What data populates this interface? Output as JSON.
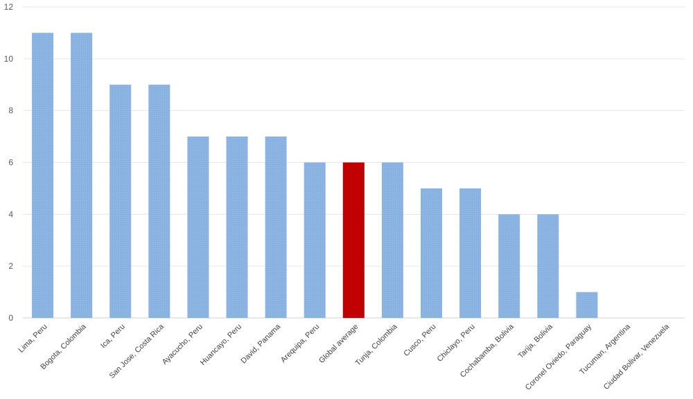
{
  "chart_data": {
    "type": "bar",
    "title": "",
    "xlabel": "",
    "ylabel": "",
    "ylim": [
      0,
      12
    ],
    "yticks": [
      0,
      2,
      4,
      6,
      8,
      10,
      12
    ],
    "grid": true,
    "legend": "none",
    "colors": {
      "default": "#8db4e2",
      "highlight": "#c00000",
      "grid": "#e6e6e6"
    },
    "highlight_category": "Global average",
    "categories": [
      "Lima, Peru",
      "Bogota, Colombia",
      "Ica, Peru",
      "San Jose, Costa Rica",
      "Ayacucho, Peru",
      "Huancayo, Peru",
      "David, Panama",
      "Arequipa, Peru",
      "Global average",
      "Tunja, Colombia",
      "Cusco, Peru",
      "Chiclayo, Peru",
      "Cochabamba, Bolivia",
      "Tarija, Bolivia",
      "Coronel Oviedo, Paraguay",
      "Tucuman, Argentina",
      "Ciudad Bolivar, Venezuela"
    ],
    "values": [
      11,
      11,
      9,
      9,
      7,
      7,
      7,
      6,
      6,
      6,
      5,
      5,
      4,
      4,
      1,
      0,
      0
    ]
  }
}
